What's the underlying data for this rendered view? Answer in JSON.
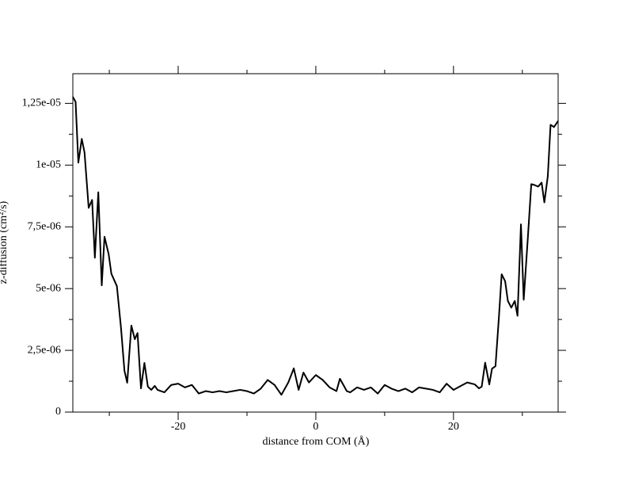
{
  "chart_data": {
    "type": "line",
    "x_label": "distance from COM (Å)",
    "y_label": "z-diffusion (cm²/s)",
    "xlim": [
      -35.3,
      35.2
    ],
    "ylim": [
      0,
      1.37e-05
    ],
    "xticks": [
      -20,
      0,
      20
    ],
    "xminorticks": [
      -30,
      -10,
      10,
      30
    ],
    "yticks": [
      0,
      {
        "value": 2.5e-06,
        "label": "2,5e-06"
      },
      {
        "value": 5e-06,
        "label": "5e-06"
      },
      {
        "value": 7.5e-06,
        "label": "7,5e-06"
      },
      {
        "value": 1e-05,
        "label": "1e-05"
      },
      {
        "value": 1.25e-05,
        "label": "1,25e-05"
      }
    ],
    "yminorticks": [
      1.25e-06,
      3.75e-06,
      6.25e-06,
      8.75e-06,
      1.125e-05
    ],
    "mirror_ticks": true,
    "grid": false,
    "series": [
      {
        "color": "#000000",
        "x": [
          -35.3,
          -34.9,
          -34.5,
          -34.0,
          -33.6,
          -33.0,
          -32.5,
          -32.1,
          -31.6,
          -31.1,
          -30.7,
          -30.1,
          -29.7,
          -28.9,
          -28.3,
          -27.8,
          -27.4,
          -26.8,
          -26.3,
          -25.9,
          -25.4,
          -24.9,
          -24.4,
          -23.9,
          -23.4,
          -23,
          -22,
          -21,
          -20,
          -19,
          -18,
          -17,
          -16,
          -15,
          -14,
          -13,
          -12,
          -11,
          -10,
          -9,
          -8,
          -7,
          -6,
          -5,
          -4,
          -3.2,
          -2.5,
          -1.8,
          -1,
          0,
          1,
          2,
          3,
          3.5,
          4.5,
          5,
          6,
          7,
          8,
          9,
          10,
          11,
          12,
          13,
          14,
          15,
          16,
          17,
          18,
          19,
          20,
          21,
          22,
          23.1,
          23.7,
          24.1,
          24.6,
          25.2,
          25.6,
          26.1,
          26.6,
          27.0,
          27.5,
          27.9,
          28.4,
          28.9,
          29.3,
          29.8,
          30.2,
          30.8,
          31.3,
          31.7,
          32.3,
          32.8,
          33.2,
          33.7,
          34.1,
          34.6,
          35.2
        ],
        "values": [
          1.276e-05,
          1.256e-05,
          1.01e-05,
          1.106e-05,
          1.051e-05,
          8.27e-06,
          8.59e-06,
          6.25e-06,
          8.9e-06,
          5.13e-06,
          7.1e-06,
          6.4e-06,
          5.6e-06,
          5.1e-06,
          3.4e-06,
          1.67e-06,
          1.19e-06,
          3.5e-06,
          2.95e-06,
          3.2e-06,
          9.6e-07,
          1.99e-06,
          1.03e-06,
          9e-07,
          1.06e-06,
          9e-07,
          8e-07,
          1.1e-06,
          1.15e-06,
          1e-06,
          1.1e-06,
          7.5e-07,
          8.5e-07,
          8e-07,
          8.5e-07,
          8e-07,
          8.5e-07,
          9e-07,
          8.5e-07,
          7.5e-07,
          9.5e-07,
          1.3e-06,
          1.1e-06,
          7e-07,
          1.2e-06,
          1.77e-06,
          9e-07,
          1.6e-06,
          1.2e-06,
          1.5e-06,
          1.3e-06,
          1e-06,
          8.5e-07,
          1.35e-06,
          8.5e-07,
          8e-07,
          1e-06,
          9e-07,
          1e-06,
          7.5e-07,
          1.1e-06,
          9.5e-07,
          8.5e-07,
          9.5e-07,
          8e-07,
          1e-06,
          9.5e-07,
          9e-07,
          8e-07,
          1.15e-06,
          9e-07,
          1.05e-06,
          1.2e-06,
          1.12e-06,
          9.6e-07,
          1.03e-06,
          2e-06,
          1.12e-06,
          1.76e-06,
          1.86e-06,
          3.85e-06,
          5.58e-06,
          5.3e-06,
          4.5e-06,
          4.23e-06,
          4.5e-06,
          3.9e-06,
          7.6e-06,
          4.55e-06,
          7.05e-06,
          9.23e-06,
          9.2e-06,
          9.13e-06,
          9.29e-06,
          8.49e-06,
          9.55e-06,
          1.163e-05,
          1.154e-05,
          1.179e-05
        ]
      }
    ]
  }
}
